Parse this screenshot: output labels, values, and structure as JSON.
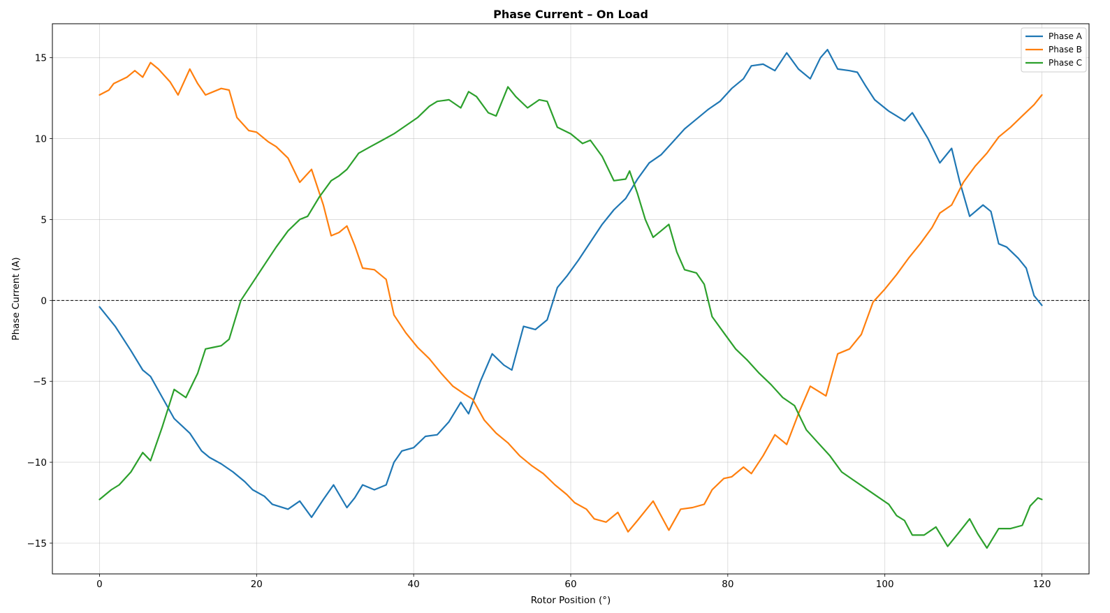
{
  "chart_data": {
    "type": "line",
    "title": "Phase Current – On Load",
    "xlabel": "Rotor Position (°)",
    "ylabel": "Phase Current (A)",
    "xlim": [
      -6,
      126
    ],
    "ylim": [
      -16.9,
      17.1
    ],
    "xticks": [
      0,
      20,
      40,
      60,
      80,
      100,
      120
    ],
    "yticks": [
      -15,
      -10,
      -5,
      0,
      5,
      10,
      15
    ],
    "ytick_labels": [
      "−15",
      "−10",
      "−5",
      "0",
      "5",
      "10",
      "15"
    ],
    "xtick_labels": [
      "0",
      "20",
      "40",
      "60",
      "80",
      "100",
      "120"
    ],
    "grid": true,
    "legend_position": "top-right",
    "reference_line": {
      "y": 0,
      "style": "dashed",
      "color": "#000000"
    },
    "series": [
      {
        "name": "Phase A",
        "color": "#1f77b4",
        "points": [
          [
            0,
            -0.4
          ],
          [
            2,
            -1.6
          ],
          [
            4,
            -3.1
          ],
          [
            5.5,
            -4.3
          ],
          [
            6.5,
            -4.7
          ],
          [
            8,
            -6
          ],
          [
            9.5,
            -7.3
          ],
          [
            11.5,
            -8.2
          ],
          [
            13,
            -9.3
          ],
          [
            14,
            -9.7
          ],
          [
            15.5,
            -10.1
          ],
          [
            17,
            -10.6
          ],
          [
            18.5,
            -11.2
          ],
          [
            19.5,
            -11.7
          ],
          [
            21,
            -12.1
          ],
          [
            22,
            -12.6
          ],
          [
            24,
            -12.9
          ],
          [
            25.5,
            -12.4
          ],
          [
            27,
            -13.4
          ],
          [
            28.5,
            -12.3
          ],
          [
            29.8,
            -11.4
          ],
          [
            31.5,
            -12.8
          ],
          [
            32.5,
            -12.2
          ],
          [
            33.5,
            -11.4
          ],
          [
            35,
            -11.7
          ],
          [
            36.5,
            -11.4
          ],
          [
            37.5,
            -10
          ],
          [
            38.5,
            -9.3
          ],
          [
            40,
            -9.1
          ],
          [
            41.5,
            -8.4
          ],
          [
            43,
            -8.3
          ],
          [
            44.5,
            -7.5
          ],
          [
            46,
            -6.3
          ],
          [
            47,
            -7
          ],
          [
            48.5,
            -5
          ],
          [
            50,
            -3.3
          ],
          [
            51.5,
            -4
          ],
          [
            52.5,
            -4.3
          ],
          [
            54,
            -1.6
          ],
          [
            55.5,
            -1.8
          ],
          [
            57,
            -1.2
          ],
          [
            58.3,
            0.8
          ],
          [
            59.5,
            1.5
          ],
          [
            61,
            2.5
          ],
          [
            62.5,
            3.6
          ],
          [
            64,
            4.7
          ],
          [
            65.5,
            5.6
          ],
          [
            67,
            6.3
          ],
          [
            68.5,
            7.5
          ],
          [
            70,
            8.5
          ],
          [
            71.5,
            9
          ],
          [
            73,
            9.8
          ],
          [
            74.5,
            10.6
          ],
          [
            76,
            11.2
          ],
          [
            77.5,
            11.8
          ],
          [
            79,
            12.3
          ],
          [
            80.5,
            13.1
          ],
          [
            82,
            13.7
          ],
          [
            83,
            14.5
          ],
          [
            84.5,
            14.6
          ],
          [
            86,
            14.2
          ],
          [
            87.5,
            15.3
          ],
          [
            89,
            14.3
          ],
          [
            90.5,
            13.7
          ],
          [
            91.8,
            15
          ],
          [
            92.7,
            15.5
          ],
          [
            94,
            14.3
          ],
          [
            95.5,
            14.2
          ],
          [
            96.5,
            14.1
          ],
          [
            97.5,
            13.3
          ],
          [
            98.7,
            12.4
          ],
          [
            100.5,
            11.7
          ],
          [
            101.5,
            11.4
          ],
          [
            102.5,
            11.1
          ],
          [
            103.5,
            11.6
          ],
          [
            104.5,
            10.8
          ],
          [
            105.5,
            10
          ],
          [
            107,
            8.5
          ],
          [
            108.5,
            9.4
          ],
          [
            109.5,
            7.4
          ],
          [
            110.8,
            5.2
          ],
          [
            112.5,
            5.9
          ],
          [
            113.5,
            5.5
          ],
          [
            114.5,
            3.5
          ],
          [
            115.5,
            3.3
          ],
          [
            117,
            2.6
          ],
          [
            118,
            2
          ],
          [
            119,
            0.3
          ],
          [
            120,
            -0.3
          ]
        ]
      },
      {
        "name": "Phase B",
        "color": "#ff7f0e",
        "points": [
          [
            0,
            12.7
          ],
          [
            1.2,
            13
          ],
          [
            1.8,
            13.4
          ],
          [
            3.5,
            13.8
          ],
          [
            4.5,
            14.2
          ],
          [
            5.5,
            13.8
          ],
          [
            6.5,
            14.7
          ],
          [
            7.5,
            14.3
          ],
          [
            9,
            13.5
          ],
          [
            10,
            12.7
          ],
          [
            11.5,
            14.3
          ],
          [
            12.5,
            13.4
          ],
          [
            13.5,
            12.7
          ],
          [
            14.5,
            12.9
          ],
          [
            15.5,
            13.1
          ],
          [
            16.5,
            13
          ],
          [
            17.5,
            11.3
          ],
          [
            19,
            10.5
          ],
          [
            20,
            10.4
          ],
          [
            21.5,
            9.8
          ],
          [
            22.5,
            9.5
          ],
          [
            24,
            8.8
          ],
          [
            25.5,
            7.3
          ],
          [
            27,
            8.1
          ],
          [
            28.5,
            5.9
          ],
          [
            29.5,
            4
          ],
          [
            30.5,
            4.2
          ],
          [
            31.5,
            4.6
          ],
          [
            32.5,
            3.4
          ],
          [
            33.5,
            2
          ],
          [
            35,
            1.9
          ],
          [
            36.5,
            1.3
          ],
          [
            37.5,
            -0.9
          ],
          [
            39,
            -2
          ],
          [
            40.5,
            -2.9
          ],
          [
            42,
            -3.6
          ],
          [
            43.5,
            -4.5
          ],
          [
            45,
            -5.3
          ],
          [
            46.5,
            -5.8
          ],
          [
            47.5,
            -6.1
          ],
          [
            49,
            -7.4
          ],
          [
            50.5,
            -8.2
          ],
          [
            52,
            -8.8
          ],
          [
            53.5,
            -9.6
          ],
          [
            55,
            -10.2
          ],
          [
            56.5,
            -10.7
          ],
          [
            58,
            -11.4
          ],
          [
            59.5,
            -12
          ],
          [
            60.5,
            -12.5
          ],
          [
            62,
            -12.9
          ],
          [
            63,
            -13.5
          ],
          [
            64.5,
            -13.7
          ],
          [
            66,
            -13.1
          ],
          [
            67.3,
            -14.3
          ],
          [
            68.5,
            -13.6
          ],
          [
            69.5,
            -13
          ],
          [
            70.5,
            -12.4
          ],
          [
            71.5,
            -13.3
          ],
          [
            72.5,
            -14.2
          ],
          [
            74,
            -12.9
          ],
          [
            75.5,
            -12.8
          ],
          [
            77,
            -12.6
          ],
          [
            78,
            -11.7
          ],
          [
            79.5,
            -11
          ],
          [
            80.5,
            -10.9
          ],
          [
            82,
            -10.3
          ],
          [
            83,
            -10.7
          ],
          [
            84.5,
            -9.6
          ],
          [
            86,
            -8.3
          ],
          [
            87.5,
            -8.9
          ],
          [
            89,
            -7
          ],
          [
            90.5,
            -5.3
          ],
          [
            91.5,
            -5.6
          ],
          [
            92.5,
            -5.9
          ],
          [
            94,
            -3.3
          ],
          [
            95.5,
            -3
          ],
          [
            97,
            -2.1
          ],
          [
            98.5,
            -0.1
          ],
          [
            100,
            0.7
          ],
          [
            101.5,
            1.6
          ],
          [
            103,
            2.6
          ],
          [
            104.5,
            3.5
          ],
          [
            106,
            4.5
          ],
          [
            107,
            5.4
          ],
          [
            108.5,
            5.9
          ],
          [
            110,
            7.3
          ],
          [
            111.5,
            8.3
          ],
          [
            113,
            9.1
          ],
          [
            114.5,
            10.1
          ],
          [
            116,
            10.7
          ],
          [
            117.5,
            11.4
          ],
          [
            119,
            12.1
          ],
          [
            120,
            12.7
          ]
        ]
      },
      {
        "name": "Phase C",
        "color": "#2ca02c",
        "points": [
          [
            0,
            -12.3
          ],
          [
            1.5,
            -11.7
          ],
          [
            2.5,
            -11.4
          ],
          [
            4,
            -10.6
          ],
          [
            5.5,
            -9.4
          ],
          [
            6.5,
            -9.9
          ],
          [
            8,
            -7.8
          ],
          [
            9.5,
            -5.5
          ],
          [
            11,
            -6
          ],
          [
            12.5,
            -4.5
          ],
          [
            13.5,
            -3
          ],
          [
            14.5,
            -2.9
          ],
          [
            15.5,
            -2.8
          ],
          [
            16.5,
            -2.4
          ],
          [
            18,
            0
          ],
          [
            19.5,
            1.1
          ],
          [
            21,
            2.2
          ],
          [
            22.5,
            3.3
          ],
          [
            24,
            4.3
          ],
          [
            25.5,
            5
          ],
          [
            26.5,
            5.2
          ],
          [
            28,
            6.4
          ],
          [
            29.5,
            7.4
          ],
          [
            30.5,
            7.7
          ],
          [
            31.5,
            8.1
          ],
          [
            33,
            9.1
          ],
          [
            34.5,
            9.5
          ],
          [
            36,
            9.9
          ],
          [
            37.5,
            10.3
          ],
          [
            39,
            10.8
          ],
          [
            40.5,
            11.3
          ],
          [
            42,
            12
          ],
          [
            43,
            12.3
          ],
          [
            44.5,
            12.4
          ],
          [
            46,
            11.9
          ],
          [
            47,
            12.9
          ],
          [
            48,
            12.6
          ],
          [
            49.5,
            11.6
          ],
          [
            50.5,
            11.4
          ],
          [
            52,
            13.2
          ],
          [
            53,
            12.6
          ],
          [
            54.5,
            11.9
          ],
          [
            56,
            12.4
          ],
          [
            57,
            12.3
          ],
          [
            58.3,
            10.7
          ],
          [
            60,
            10.3
          ],
          [
            61.5,
            9.7
          ],
          [
            62.5,
            9.9
          ],
          [
            64,
            8.9
          ],
          [
            65.5,
            7.4
          ],
          [
            67,
            7.5
          ],
          [
            67.5,
            8
          ],
          [
            68.5,
            6.6
          ],
          [
            69.5,
            5
          ],
          [
            70.5,
            3.9
          ],
          [
            71.5,
            4.3
          ],
          [
            72.5,
            4.7
          ],
          [
            73.5,
            3
          ],
          [
            74.5,
            1.9
          ],
          [
            76,
            1.7
          ],
          [
            77,
            1
          ],
          [
            78,
            -1
          ],
          [
            79.5,
            -2
          ],
          [
            81,
            -3
          ],
          [
            82.5,
            -3.7
          ],
          [
            84,
            -4.5
          ],
          [
            85.5,
            -5.2
          ],
          [
            87,
            -6
          ],
          [
            88.5,
            -6.5
          ],
          [
            90,
            -8
          ],
          [
            91.5,
            -8.8
          ],
          [
            93,
            -9.6
          ],
          [
            94.5,
            -10.6
          ],
          [
            96,
            -11.1
          ],
          [
            97.5,
            -11.6
          ],
          [
            99,
            -12.1
          ],
          [
            100.5,
            -12.6
          ],
          [
            101.5,
            -13.3
          ],
          [
            102.5,
            -13.6
          ],
          [
            103.5,
            -14.5
          ],
          [
            105,
            -14.5
          ],
          [
            106.5,
            -14
          ],
          [
            108,
            -15.2
          ],
          [
            109.5,
            -14.3
          ],
          [
            110.8,
            -13.5
          ],
          [
            111.8,
            -14.4
          ],
          [
            113,
            -15.3
          ],
          [
            114.5,
            -14.1
          ],
          [
            116,
            -14.1
          ],
          [
            117.5,
            -13.9
          ],
          [
            118.5,
            -12.7
          ],
          [
            119.5,
            -12.2
          ],
          [
            120,
            -12.3
          ]
        ]
      }
    ]
  }
}
